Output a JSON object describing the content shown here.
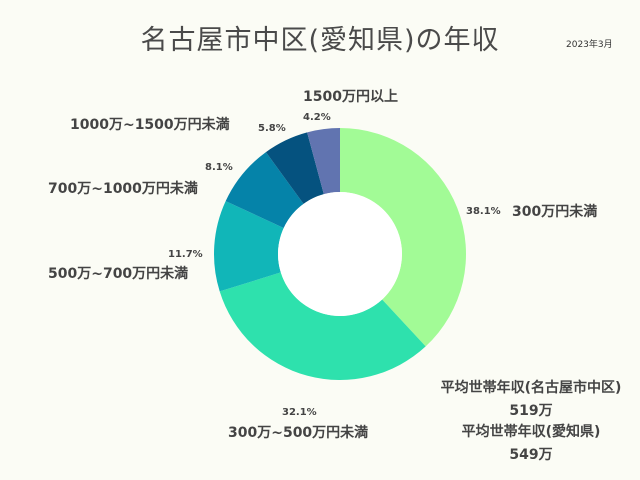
{
  "title": "名古屋市中区(愛知県)の年収",
  "date": "2023年3月",
  "chart_data": {
    "type": "pie",
    "donut": true,
    "slices": [
      {
        "label": "300万円未満",
        "value": 38.1,
        "pct_label": "38.1%",
        "color": "#a2fb96"
      },
      {
        "label": "300万~500万円未満",
        "value": 32.1,
        "pct_label": "32.1%",
        "color": "#2ee1ad"
      },
      {
        "label": "500万~700万円未満",
        "value": 11.7,
        "pct_label": "11.7%",
        "color": "#11b6b8"
      },
      {
        "label": "700万~1000万円未満",
        "value": 8.1,
        "pct_label": "8.1%",
        "color": "#0583a9"
      },
      {
        "label": "1000万~1500万円未満",
        "value": 5.8,
        "pct_label": "5.8%",
        "color": "#05527f"
      },
      {
        "label": "1500万円以上",
        "value": 4.2,
        "pct_label": "4.2%",
        "color": "#6174b0"
      }
    ]
  },
  "notes": {
    "local_label": "平均世帯年収(名古屋市中区)",
    "local_value": "519万",
    "pref_label": "平均世帯年収(愛知県)",
    "pref_value": "549万"
  }
}
